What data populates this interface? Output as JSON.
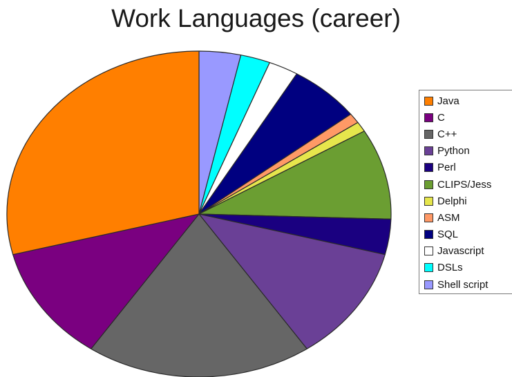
{
  "chart_data": {
    "type": "pie",
    "title": "Work Languages (career)",
    "start": "top",
    "direction": "clockwise",
    "slices": [
      {
        "label": "Shell script",
        "value": 3.5,
        "color": "#9999ff",
        "in_legend": true
      },
      {
        "label": "DSLs",
        "value": 2.5,
        "color": "#00ffff",
        "in_legend": true
      },
      {
        "label": "Javascript",
        "value": 2.5,
        "color": "#ffffff",
        "in_legend": true
      },
      {
        "label": "SQL",
        "value": 6.0,
        "color": "#000080",
        "in_legend": true
      },
      {
        "label": "ASM",
        "value": 1.0,
        "color": "#ff9966",
        "in_legend": true
      },
      {
        "label": "Delphi",
        "value": 1.0,
        "color": "#e6e64c",
        "in_legend": true
      },
      {
        "label": "CLIPS/Jess",
        "value": 9.0,
        "color": "#6b9e32",
        "in_legend": true
      },
      {
        "label": "Perl",
        "value": 3.5,
        "color": "#1a0080",
        "in_legend": true
      },
      {
        "label": "Python",
        "value": 11.5,
        "color": "#6a4096",
        "in_legend": true
      },
      {
        "label": "C++",
        "value": 19.0,
        "color": "#666666",
        "in_legend": true
      },
      {
        "label": "C",
        "value": 11.5,
        "color": "#7a0080",
        "in_legend": true
      },
      {
        "label": "Java",
        "value": 29.0,
        "color": "#ff7f00",
        "in_legend": true
      }
    ],
    "legend": {
      "position": "right",
      "order": [
        "Java",
        "C",
        "C++",
        "Python",
        "Perl",
        "CLIPS/Jess",
        "Delphi",
        "ASM",
        "SQL",
        "Javascript",
        "DSLs",
        "Shell script"
      ]
    }
  }
}
